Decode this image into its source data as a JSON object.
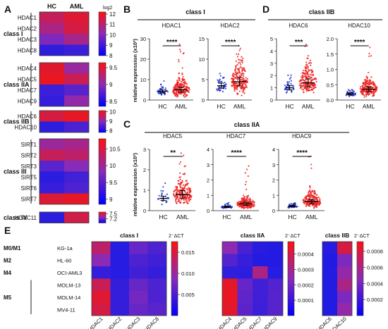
{
  "panels": {
    "A": "A",
    "B": "B",
    "C": "C",
    "D": "D",
    "E": "E"
  },
  "colors": {
    "blue": "#1a1ae6",
    "purple": "#8a2bb8",
    "red": "#f01515",
    "hc": "#1f2fd0",
    "aml": "#ee2222"
  },
  "chart_data": [
    {
      "type": "heatmap",
      "panel": "A",
      "columns": [
        "HC",
        "AML"
      ],
      "groups": [
        {
          "label": "class I",
          "rows": [
            "HDAC1",
            "HDAC2",
            "HDAC3",
            "HDAC8"
          ],
          "values": [
            [
              11.3,
              11.8
            ],
            [
              10.8,
              11.6
            ],
            [
              9.9,
              10.7
            ],
            [
              8.4,
              8.6
            ]
          ],
          "scale_label": "log2",
          "ticks": [
            12,
            11,
            10,
            9,
            8
          ],
          "range": [
            8,
            12.2
          ]
        },
        {
          "label": "class IIA",
          "rows": [
            "HDAC4",
            "HDAC5",
            "HDAC7",
            "HDAC9"
          ],
          "values": [
            [
              9.55,
              9.1
            ],
            [
              9.6,
              9.4
            ],
            [
              8.55,
              8.7
            ],
            [
              8.5,
              9.05
            ]
          ],
          "ticks": [
            9.5,
            9.0,
            8.5
          ],
          "range": [
            8.35,
            9.65
          ]
        },
        {
          "label": "class IIB",
          "rows": [
            "HDAC6",
            "HDAC10"
          ],
          "values": [
            [
              9.8,
              10.0
            ],
            [
              8.0,
              8.3
            ]
          ],
          "ticks": [
            10,
            9,
            8
          ],
          "range": [
            7.8,
            10.1
          ]
        },
        {
          "label": "class III",
          "rows": [
            "SIRT1",
            "SIRT2",
            "SIRT3",
            "SIRT5",
            "SIRT6",
            "SIRT7"
          ],
          "values": [
            [
              10.0,
              10.1
            ],
            [
              10.4,
              10.3
            ],
            [
              9.4,
              9.8
            ],
            [
              9.0,
              9.2
            ],
            [
              9.1,
              9.3
            ],
            [
              10.6,
              10.7
            ]
          ],
          "ticks": [
            10.5,
            10.0,
            9.5,
            9.0
          ],
          "range": [
            8.85,
            10.8
          ]
        },
        {
          "label": "class IV",
          "rows": [
            "HDAC11"
          ],
          "values": [
            [
              7.0,
              7.5
            ]
          ],
          "ticks": [
            7.5,
            7.2
          ],
          "range": [
            6.95,
            7.6
          ]
        }
      ]
    },
    {
      "type": "scatter",
      "panel": "B",
      "title": "class I",
      "ylabel": "relative expression (x10³)",
      "plots": [
        {
          "gene": "HDAC1",
          "categories": [
            "HC",
            "AML"
          ],
          "ylim": [
            0,
            30
          ],
          "yticks": [
            0,
            10,
            20,
            30
          ],
          "means": [
            4.2,
            5.0
          ],
          "sig": "****"
        },
        {
          "gene": "HDAC2",
          "categories": [
            "HC",
            "AML"
          ],
          "ylim": [
            0,
            15
          ],
          "yticks": [
            0,
            5,
            10,
            15
          ],
          "means": [
            3.5,
            4.5
          ],
          "sig": "****"
        }
      ]
    },
    {
      "type": "scatter",
      "panel": "D",
      "title": "class IIB",
      "plots": [
        {
          "gene": "HDAC6",
          "categories": [
            "HC",
            "AML"
          ],
          "ylim": [
            0,
            5
          ],
          "yticks": [
            0,
            1,
            2,
            3,
            4,
            5
          ],
          "means": [
            1.0,
            1.4
          ],
          "sig": "***"
        },
        {
          "gene": "HDAC10",
          "categories": [
            "HC",
            "AML"
          ],
          "ylim": [
            0,
            2.0
          ],
          "yticks": [
            0.0,
            0.5,
            1.0,
            1.5,
            2.0
          ],
          "means": [
            0.2,
            0.35
          ],
          "sig": "****"
        }
      ]
    },
    {
      "type": "scatter",
      "panel": "C",
      "title": "class IIA",
      "ylabel": "relative expression (x10³)",
      "plots": [
        {
          "gene": "HDAC5",
          "categories": [
            "HC",
            "AML"
          ],
          "ylim": [
            0,
            3
          ],
          "yticks": [
            0,
            1,
            2,
            3
          ],
          "means": [
            0.6,
            0.8
          ],
          "sig": "**"
        },
        {
          "gene": "HDAC7",
          "categories": [
            "HC",
            "AML"
          ],
          "ylim": [
            0,
            4
          ],
          "yticks": [
            0,
            1,
            2,
            3,
            4
          ],
          "means": [
            0.25,
            0.45
          ],
          "sig": "****"
        },
        {
          "gene": "HDAC9",
          "categories": [
            "HC",
            "AML"
          ],
          "ylim": [
            0,
            4
          ],
          "yticks": [
            0,
            1,
            2,
            3,
            4
          ],
          "means": [
            0.3,
            0.6
          ],
          "sig": "****"
        }
      ]
    },
    {
      "type": "heatmap",
      "panel": "E",
      "rows": [
        "KG-1a",
        "HL-60",
        "OCI-AML3",
        "MOLM-13",
        "MOLM-14",
        "MV4-11"
      ],
      "row_groups": [
        {
          "label": "M0/M1",
          "rows": [
            0
          ]
        },
        {
          "label": "M2",
          "rows": [
            1
          ]
        },
        {
          "label": "M4",
          "rows": [
            2
          ]
        },
        {
          "label": "M5",
          "rows": [
            3,
            4,
            5
          ]
        }
      ],
      "legend_label": "2⁻ΔCT",
      "blocks": [
        {
          "title": "class I",
          "columns": [
            "HDAC1",
            "HDAC2",
            "HDAC3",
            "HDAC8"
          ],
          "values": [
            [
              0.013,
              0.001,
              0.006,
              0.004
            ],
            [
              0.009,
              0.001,
              0.004,
              0.003
            ],
            [
              0.002,
              0.001,
              0.003,
              0.002
            ],
            [
              0.014,
              0.002,
              0.006,
              0.004
            ],
            [
              0.016,
              0.002,
              0.007,
              0.004
            ],
            [
              0.015,
              0.002,
              0.006,
              0.005
            ]
          ],
          "ticks": [
            "0.015",
            "0.010",
            "0.005"
          ],
          "tick_values": [
            0.015,
            0.01,
            0.005
          ],
          "range": [
            0,
            0.0175
          ]
        },
        {
          "title": "class IIA",
          "columns": [
            "HDAC4",
            "HDAC5",
            "HDAC7",
            "HDAC9"
          ],
          "values": [
            [
              0.00025,
              0.0001,
              3e-05,
              2e-05
            ],
            [
              0.00012,
              6e-05,
              2e-05,
              2e-05
            ],
            [
              5e-05,
              4e-05,
              0.00032,
              3e-05
            ],
            [
              0.00045,
              0.00016,
              8e-05,
              0.00012
            ],
            [
              0.00046,
              0.00015,
              8e-05,
              0.00013
            ],
            [
              0.00045,
              0.00014,
              7e-05,
              0.00013
            ]
          ],
          "ticks": [
            "0.0004",
            "0.0003",
            "0.0002",
            "0.0001"
          ],
          "tick_values": [
            0.0004,
            0.0003,
            0.0002,
            0.0001
          ],
          "range": [
            0,
            0.00048
          ]
        },
        {
          "title": "class IIB",
          "columns": [
            "HDAC6",
            "HDAC10"
          ],
          "values": [
            [
              5e-05,
              0.0008
            ],
            [
              2e-05,
              0.0004
            ],
            [
              3e-05,
              0.0005
            ],
            [
              3e-05,
              0.0006
            ],
            [
              3e-05,
              0.0004
            ],
            [
              3e-05,
              0.0005
            ]
          ],
          "ticks": [
            "0.0008",
            "0.0006",
            "0.0004",
            "0.0002"
          ],
          "tick_values": [
            0.0008,
            0.0006,
            0.0004,
            0.0002
          ],
          "range": [
            0,
            0.00092
          ]
        }
      ]
    }
  ]
}
